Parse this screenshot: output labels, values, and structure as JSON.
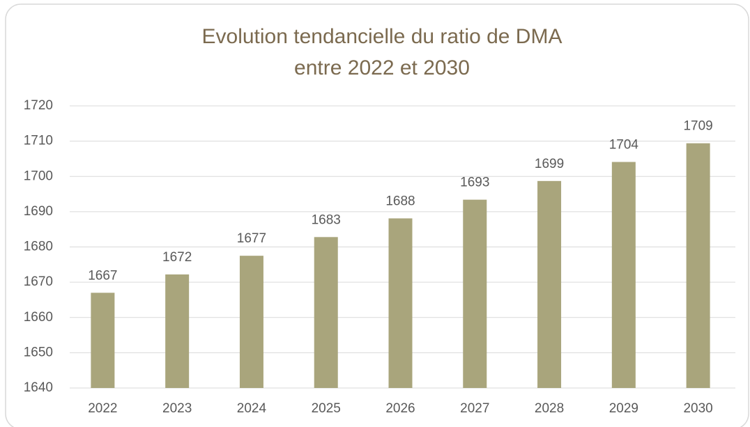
{
  "chart_data": {
    "type": "bar",
    "title": [
      "Evolution tendancielle du ratio de DMA",
      "entre 2022 et 2030"
    ],
    "categories": [
      "2022",
      "2023",
      "2024",
      "2025",
      "2026",
      "2027",
      "2028",
      "2029",
      "2030"
    ],
    "values": [
      1667.0,
      1672.2,
      1677.5,
      1682.8,
      1688.1,
      1693.4,
      1698.7,
      1704.1,
      1709.4
    ],
    "value_labels": [
      "1667",
      "1672",
      "1677",
      "1683",
      "1688",
      "1693",
      "1699",
      "1704",
      "1709"
    ],
    "color": "#a9a57c",
    "ylim": [
      1640,
      1720
    ],
    "yticks": [
      1640,
      1650,
      1660,
      1670,
      1680,
      1690,
      1700,
      1710,
      1720
    ],
    "grid": true
  }
}
